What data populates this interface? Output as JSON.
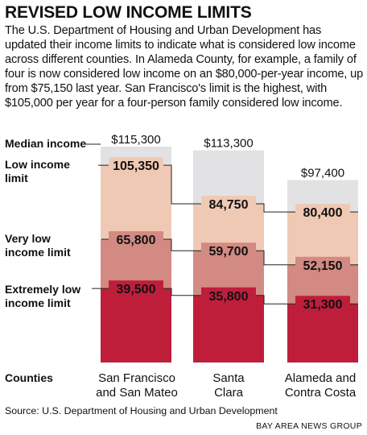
{
  "title": "REVISED LOW INCOME LIMITS",
  "intro": "The U.S. Department of Housing and Urban Development has updated their income limits to indicate what is considered low income across different counties. In Alameda County, for example, a family of four is now considered low income on an $80,000-per-year income, up from $75,150 last year. San Francisco's limit is the highest, with $105,000 per year for a four-person family considered low income.",
  "legend": {
    "median": "Median income",
    "low_line1": "Low income",
    "low_line2": "limit",
    "very_low_line1": "Very low",
    "very_low_line2": "income limit",
    "extremely_low_line1": "Extremely low",
    "extremely_low_line2": "income limit"
  },
  "counties_label": "Counties",
  "source": "Source: U.S. Department of Housing and Urban Development",
  "credit": "BAY AREA NEWS GROUP",
  "colors": {
    "median": "#e2e2e4",
    "low": "#f0c9b4",
    "very_low": "#d28a82",
    "extremely_low": "#bf1e3b"
  },
  "chart_data": {
    "type": "bar",
    "stacked": false,
    "categories": [
      [
        "San Francisco",
        "and San Mateo"
      ],
      [
        "Santa",
        "Clara"
      ],
      [
        "Alameda and",
        "Contra Costa"
      ]
    ],
    "series": [
      {
        "name": "Median income",
        "values": [
          115300,
          113300,
          97400
        ],
        "labels": [
          "$115,300",
          "$113,300",
          "$97,400"
        ]
      },
      {
        "name": "Low income limit",
        "values": [
          105350,
          84750,
          80400
        ],
        "labels": [
          "105,350",
          "84,750",
          "80,400"
        ]
      },
      {
        "name": "Very low income limit",
        "values": [
          65800,
          59700,
          52150
        ],
        "labels": [
          "65,800",
          "59,700",
          "52,150"
        ]
      },
      {
        "name": "Extremely low income limit",
        "values": [
          39500,
          35800,
          31300
        ],
        "labels": [
          "39,500",
          "35,800",
          "31,300"
        ]
      }
    ],
    "ylim": [
      0,
      115300
    ],
    "grid": false
  }
}
